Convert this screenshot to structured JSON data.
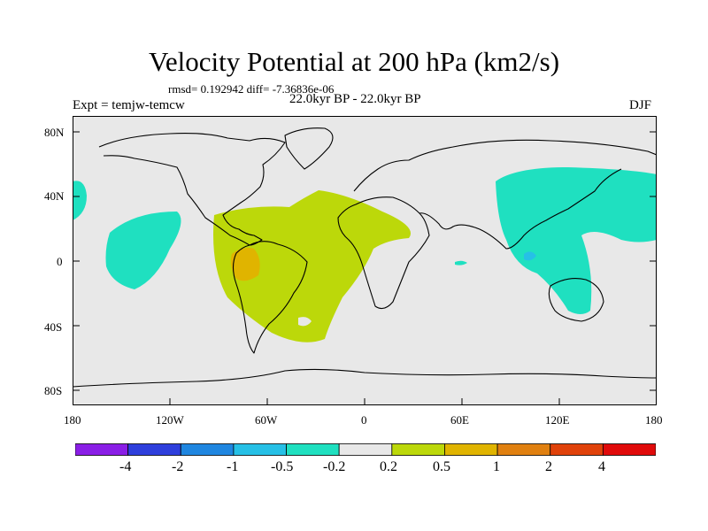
{
  "title": "Velocity Potential at 200 hPa (km2/s)",
  "stats": "rmsd= 0.192942 diff= -7.36836e-06",
  "experiment": "Expt = temjw-temcw",
  "period": "22.0kyr BP - 22.0kyr BP",
  "season": "DJF",
  "lat_ticks": [
    "80N",
    "40N",
    "0",
    "40S",
    "80S"
  ],
  "lon_ticks": [
    "180",
    "120W",
    "60W",
    "0",
    "60E",
    "120E",
    "180"
  ],
  "colorbar": {
    "labels": [
      "-4",
      "-2",
      "-1",
      "-0.5",
      "-0.2",
      "0.2",
      "0.5",
      "1",
      "2",
      "4"
    ],
    "colors": [
      "#8a1ee6",
      "#2e3fdc",
      "#1f86e0",
      "#26c0e6",
      "#1fe0c0",
      "#e8e8e8",
      "#bcd80a",
      "#e0b400",
      "#e08010",
      "#e0420a",
      "#e00a0a"
    ]
  },
  "colors": {
    "land_background": "#e8e8e8",
    "neg_weak": "#1fe0c0",
    "neg_moderate": "#26c0e6",
    "pos_weak": "#bcd80a",
    "pos_moderate": "#e0b400"
  }
}
